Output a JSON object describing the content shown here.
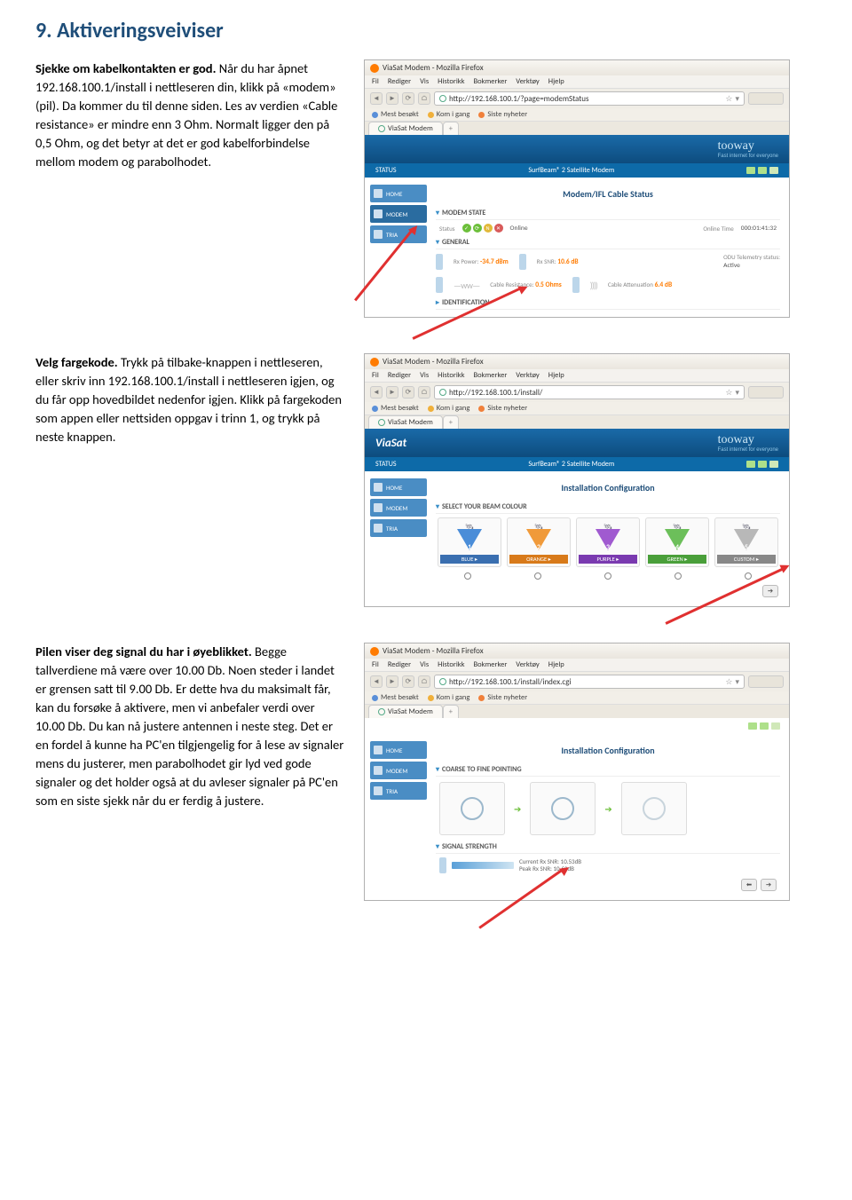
{
  "title": "9. Aktiveringsveiviser",
  "para1": {
    "a": "Sjekke om kabelkontakten er god.",
    "b": " Når du har åpnet 192.168.100.1/install i nettleseren din, klikk på «modem» (pil). Da kommer du til denne siden. Les av verdien «Cable resistance» er mindre enn 3 Ohm. Normalt ligger den på 0,5 Ohm, og det betyr at det er god kabelforbindelse  mellom modem og parabolhodet."
  },
  "para2": {
    "a": "Velg fargekode.",
    "b": " Trykk på tilbake-knappen i nettleseren, eller skriv inn 192.168.100.1/install i nettleseren igjen, og du får opp hovedbildet nedenfor igjen. Klikk på fargekoden som appen eller nettsiden oppgav i trinn 1, og trykk på neste knappen."
  },
  "para3": {
    "a": "Pilen viser deg signal du har i øyeblikket.",
    "b": " Begge tallverdiene må være over 10.00 Db. Noen steder i landet er grensen satt til 9.00 Db. Er dette hva du maksimalt får, kan du forsøke å aktivere, men vi anbefaler verdi over 10.00 Db. Du kan nå justere antennen i neste steg. Det er en fordel å kunne ha PC'en tilgjengelig for å lese av signaler mens du justerer, men parabolhodet gir lyd ved gode signaler og det holder også at du avleser signaler på PC'en som en siste sjekk når du er ferdig å justere."
  },
  "browser": {
    "title": "ViaSat Modem - Mozilla Firefox",
    "menu": [
      "Fil",
      "Rediger",
      "Vis",
      "Historikk",
      "Bokmerker",
      "Verktøy",
      "Hjelp"
    ],
    "url1": "http://192.168.100.1/?page=modemStatus",
    "url2": "http://192.168.100.1/install/",
    "url3": "http://192.168.100.1/install/index.cgi",
    "bookmarks": [
      "Mest besøkt",
      "Kom i gang",
      "Siste nyheter"
    ],
    "tab": "ViaSat Modem"
  },
  "shot1": {
    "status": "STATUS",
    "subtitle": "SurfBeam® 2 Satellite Modem",
    "side": [
      "HOME",
      "MODEM",
      "TRIA"
    ],
    "main_title": "Modem/IFL Cable Status",
    "sec_modem": "MODEM STATE",
    "stat_lbl": "Status",
    "stat_val": "Online",
    "online_time_lbl": "Online Time",
    "online_time": "000:01:41:32",
    "sec_gen": "GENERAL",
    "rxp_lbl": "Rx Power:",
    "rxp": "-34.7 dBm",
    "rxsnr_lbl": "Rx SNR:",
    "rxsnr": "10.6 dB",
    "odu_lbl": "ODU Telemetry status:",
    "odu": "Active",
    "cres_lbl": "Cable Resistance:",
    "cres": "0.5 Ohms",
    "catt_lbl": "Cable Attenuation",
    "catt": "6.4 dB",
    "sec_id": "IDENTIFICATION"
  },
  "shot2": {
    "main_title": "Installation Configuration",
    "sec_beam": "SELECT YOUR BEAM COLOUR",
    "beams": [
      {
        "n": "1",
        "lbl": "BLUE ▸",
        "cone": "#4a8dd8",
        "bar": "#3a6fb0"
      },
      {
        "n": "2",
        "lbl": "ORANGE ▸",
        "cone": "#f09a3a",
        "bar": "#d87a1a"
      },
      {
        "n": "3",
        "lbl": "PURPLE ▸",
        "cone": "#a05ad0",
        "bar": "#7a3ab0"
      },
      {
        "n": "4",
        "lbl": "GREEN ▸",
        "cone": "#6cbf5a",
        "bar": "#4a9f3a"
      },
      {
        "n": "5",
        "lbl": "CUSTOM ▸",
        "cone": "#b8b8b8",
        "bar": "#888888"
      }
    ]
  },
  "shot3": {
    "main_title": "Installation Configuration",
    "sec_ctf": "COARSE TO FINE POINTING",
    "sec_sig": "SIGNAL STRENGTH",
    "cur_lbl": "Current Rx SNR:",
    "cur": "10.53dB",
    "peak_lbl": "Peak Rx SNR:",
    "peak": "10.62dB"
  }
}
